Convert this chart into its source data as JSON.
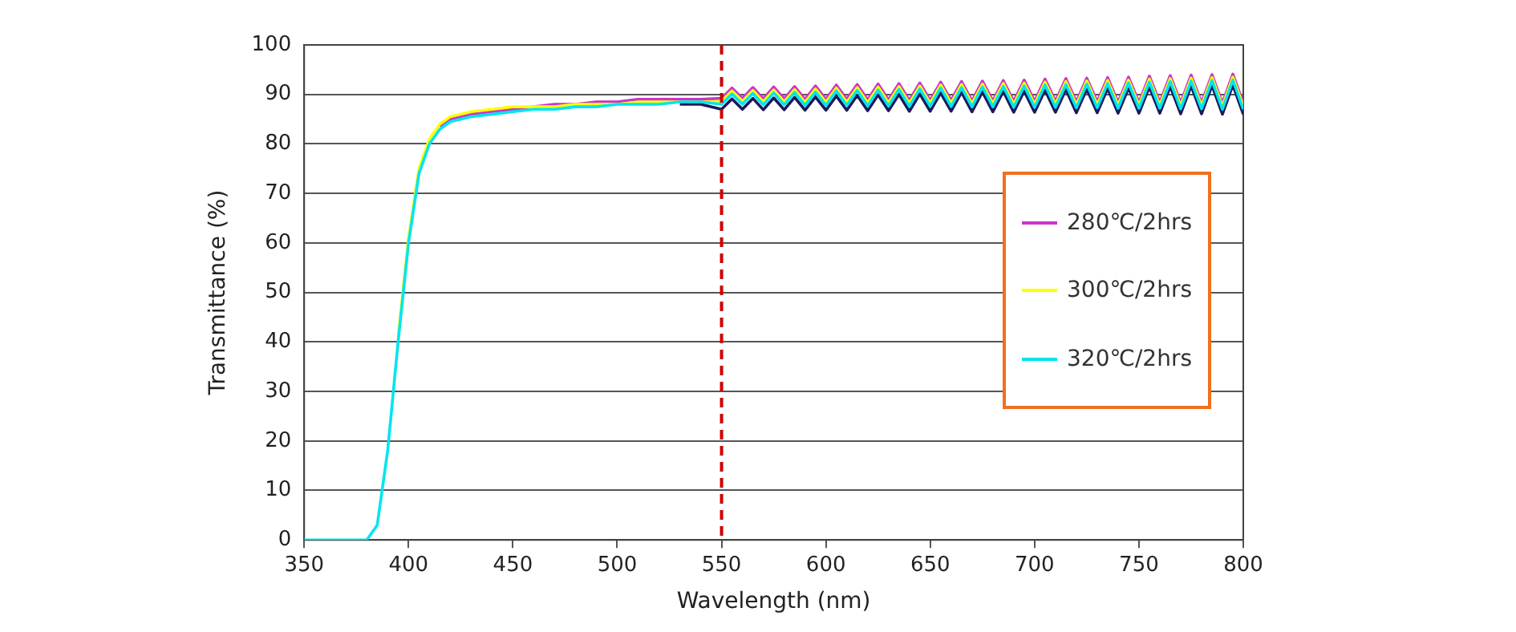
{
  "chart_data": {
    "type": "line",
    "xlabel": "Wavelength (nm)",
    "ylabel": "Transmittance (%)",
    "xlim": [
      350,
      800
    ],
    "xticks": [
      350,
      400,
      450,
      500,
      550,
      600,
      650,
      700,
      750,
      800
    ],
    "ylim": [
      0,
      100
    ],
    "yticks": [
      0,
      10,
      20,
      30,
      40,
      50,
      60,
      70,
      80,
      90,
      100
    ],
    "grid": "y",
    "legend": "right",
    "marker": "none",
    "line_style": "solid",
    "x": [
      350,
      380,
      385,
      390,
      395,
      400,
      405,
      410,
      415,
      420,
      430,
      440,
      450,
      460,
      470,
      480,
      490,
      500,
      510,
      520,
      530,
      540,
      550,
      555,
      560,
      565,
      570,
      575,
      580,
      585,
      590,
      595,
      600,
      605,
      610,
      615,
      620,
      625,
      630,
      635,
      640,
      645,
      650,
      655,
      660,
      665,
      670,
      675,
      680,
      685,
      690,
      695,
      700,
      705,
      710,
      715,
      720,
      725,
      730,
      735,
      740,
      745,
      750,
      755,
      760,
      765,
      770,
      775,
      780,
      785,
      790,
      795,
      800
    ],
    "ref_lines": [
      {
        "axis": "x",
        "value": 550,
        "color": "#cc0000",
        "line_style": "dashed"
      }
    ],
    "series": [
      {
        "name": "280℃/2hrs",
        "color": "#cc33cc",
        "values": [
          null,
          null,
          null,
          null,
          null,
          null,
          null,
          null,
          83.5,
          85,
          86,
          86.5,
          87,
          87.5,
          88,
          88,
          88.5,
          88.5,
          89,
          89,
          89,
          89,
          89.2,
          91.3,
          89.2,
          91.4,
          89.1,
          91.5,
          89.1,
          91.6,
          89.0,
          91.7,
          89.0,
          91.9,
          89.0,
          92.0,
          88.9,
          92.1,
          88.9,
          92.2,
          88.8,
          92.3,
          88.8,
          92.5,
          88.8,
          92.6,
          88.7,
          92.7,
          88.7,
          92.8,
          88.6,
          92.9,
          88.6,
          93.1,
          88.6,
          93.2,
          88.5,
          93.3,
          88.5,
          93.4,
          88.4,
          93.5,
          88.4,
          93.7,
          88.4,
          93.8,
          88.3,
          93.9,
          88.3,
          94.0,
          88.2,
          94.1,
          88.2
        ]
      },
      {
        "name": "300℃/2hrs",
        "color": "#ffff00",
        "values": [
          null,
          null,
          null,
          null,
          41,
          61,
          75,
          81,
          84,
          85.5,
          86.5,
          87,
          87.5,
          87.5,
          87.5,
          88,
          88,
          88,
          88.5,
          88.5,
          88.5,
          88.5,
          88.6,
          90.7,
          88.6,
          90.8,
          88.5,
          90.9,
          88.5,
          91.0,
          88.4,
          91.1,
          88.4,
          91.3,
          88.4,
          91.4,
          88.3,
          91.5,
          88.3,
          91.6,
          88.2,
          91.7,
          88.2,
          91.9,
          88.2,
          92.0,
          88.1,
          92.1,
          88.1,
          92.2,
          88.0,
          92.3,
          88.0,
          92.5,
          88.0,
          92.6,
          87.9,
          92.7,
          87.9,
          92.8,
          87.8,
          92.9,
          87.8,
          93.1,
          87.8,
          93.2,
          87.7,
          93.3,
          87.7,
          93.4,
          87.6,
          93.5,
          87.6
        ]
      },
      {
        "color": "#1a1a5e",
        "values": [
          null,
          null,
          null,
          null,
          null,
          null,
          null,
          null,
          null,
          null,
          null,
          null,
          null,
          null,
          null,
          null,
          null,
          null,
          null,
          null,
          88,
          88,
          87,
          89.1,
          87.0,
          89.2,
          86.9,
          89.3,
          86.9,
          89.4,
          86.8,
          89.5,
          86.8,
          89.7,
          86.8,
          89.8,
          86.7,
          89.9,
          86.7,
          90.0,
          86.6,
          90.1,
          86.6,
          90.3,
          86.6,
          90.4,
          86.5,
          90.5,
          86.5,
          90.6,
          86.4,
          90.7,
          86.4,
          90.9,
          86.4,
          91.0,
          86.3,
          91.1,
          86.3,
          91.2,
          86.2,
          91.3,
          86.2,
          91.5,
          86.2,
          91.6,
          86.1,
          91.7,
          86.1,
          91.8,
          86.0,
          91.9,
          86.0
        ]
      },
      {
        "name": "320℃/2hrs",
        "color": "#00e5ee",
        "values": [
          0,
          0,
          3,
          18,
          40,
          60,
          74,
          80,
          83,
          84.5,
          85.5,
          86,
          86.5,
          87,
          87,
          87.5,
          87.5,
          88,
          88,
          88,
          88.5,
          88.5,
          88,
          90.1,
          88.0,
          90.2,
          87.9,
          90.3,
          87.9,
          90.4,
          87.8,
          90.5,
          87.8,
          90.7,
          87.8,
          90.8,
          87.7,
          90.9,
          87.7,
          91.0,
          87.6,
          91.1,
          87.6,
          91.3,
          87.6,
          91.4,
          87.5,
          91.5,
          87.5,
          91.6,
          87.4,
          91.7,
          87.4,
          91.9,
          87.4,
          92.0,
          87.3,
          92.1,
          87.3,
          92.2,
          87.2,
          92.3,
          87.2,
          92.5,
          87.2,
          92.6,
          87.1,
          92.7,
          87.1,
          92.8,
          87.0,
          92.9,
          87.0
        ]
      }
    ]
  }
}
